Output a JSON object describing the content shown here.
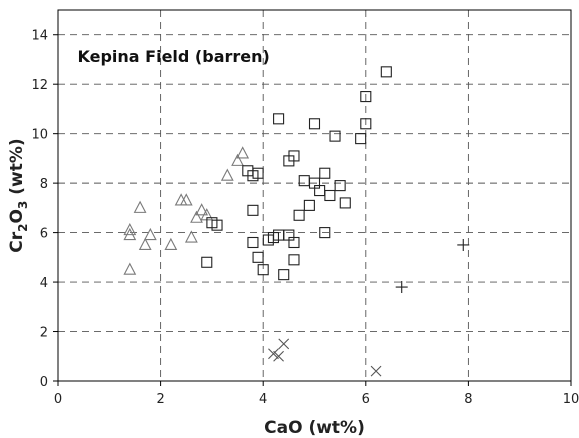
{
  "chart_data": {
    "type": "scatter",
    "title": "",
    "annotation": "Kepina Field (barren)",
    "xlabel": "CaO (wt%)",
    "ylabel_parts": {
      "main": "Cr",
      "sub1": "2",
      "mid": "O",
      "sub2": "3",
      "unit": " (wt%)"
    },
    "xlim": [
      0,
      10
    ],
    "ylim": [
      0,
      15
    ],
    "xticks": [
      0,
      2,
      4,
      6,
      8,
      10
    ],
    "yticks": [
      0,
      2,
      4,
      6,
      8,
      10,
      12,
      14
    ],
    "grid": true,
    "colors": {
      "triangle": "#7a7a7a",
      "square": "#222222",
      "diamond": "#4a4a4a",
      "cross": "#555555",
      "plus": "#222222"
    },
    "series": [
      {
        "marker": "triangle",
        "points": [
          [
            1.4,
            6.1
          ],
          [
            1.4,
            5.9
          ],
          [
            1.4,
            4.5
          ],
          [
            1.6,
            7.0
          ],
          [
            1.7,
            5.5
          ],
          [
            1.8,
            5.9
          ],
          [
            2.2,
            5.5
          ],
          [
            2.4,
            7.3
          ],
          [
            2.5,
            7.3
          ],
          [
            2.6,
            5.8
          ],
          [
            2.7,
            6.6
          ],
          [
            2.8,
            6.9
          ],
          [
            2.9,
            6.7
          ],
          [
            3.3,
            8.3
          ],
          [
            3.5,
            8.9
          ],
          [
            3.6,
            9.2
          ]
        ]
      },
      {
        "marker": "square",
        "points": [
          [
            2.9,
            4.8
          ],
          [
            3.0,
            6.4
          ],
          [
            3.1,
            6.3
          ],
          [
            3.7,
            8.5
          ],
          [
            3.8,
            8.3
          ],
          [
            3.9,
            8.4
          ],
          [
            3.8,
            6.9
          ],
          [
            3.8,
            5.6
          ],
          [
            3.9,
            5.0
          ],
          [
            4.0,
            4.5
          ],
          [
            4.2,
            5.8
          ],
          [
            4.3,
            5.9
          ],
          [
            4.3,
            10.6
          ],
          [
            4.5,
            8.9
          ],
          [
            4.6,
            9.1
          ],
          [
            4.5,
            5.9
          ],
          [
            4.6,
            5.6
          ],
          [
            4.7,
            6.7
          ],
          [
            4.8,
            8.1
          ],
          [
            4.9,
            7.1
          ],
          [
            5.0,
            8.0
          ],
          [
            5.1,
            7.7
          ],
          [
            5.0,
            10.4
          ],
          [
            5.2,
            8.4
          ],
          [
            5.3,
            7.5
          ],
          [
            5.4,
            9.9
          ],
          [
            5.5,
            7.9
          ],
          [
            5.6,
            7.2
          ],
          [
            5.9,
            9.8
          ],
          [
            6.0,
            10.4
          ],
          [
            6.0,
            11.5
          ],
          [
            6.4,
            12.5
          ],
          [
            4.4,
            4.3
          ],
          [
            4.6,
            4.9
          ],
          [
            5.2,
            6.0
          ],
          [
            4.1,
            5.7
          ]
        ]
      },
      {
        "marker": "cross",
        "points": [
          [
            4.2,
            1.1
          ],
          [
            4.3,
            1.0
          ],
          [
            4.4,
            1.5
          ],
          [
            6.2,
            0.4
          ]
        ]
      },
      {
        "marker": "plus",
        "points": [
          [
            6.7,
            3.8
          ],
          [
            7.9,
            5.5
          ]
        ]
      }
    ]
  }
}
